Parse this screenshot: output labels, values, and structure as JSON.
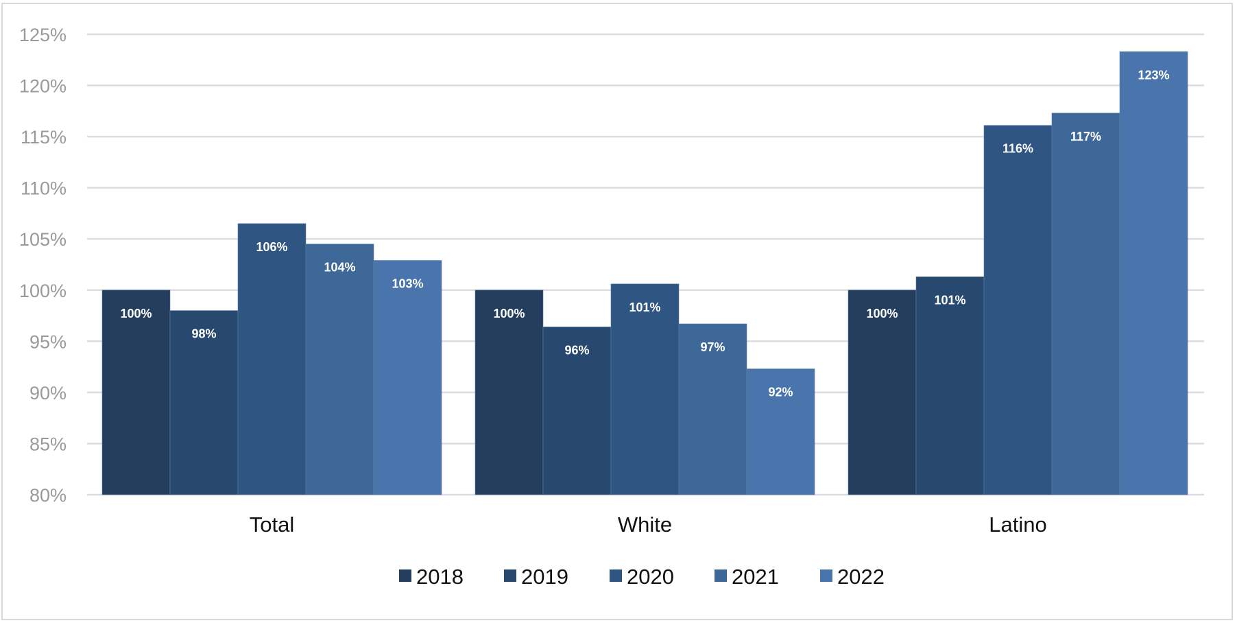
{
  "chart_data": {
    "type": "bar",
    "title": "",
    "xlabel": "",
    "ylabel": "",
    "categories": [
      "Total",
      "White",
      "Latino"
    ],
    "series": [
      {
        "name": "2018",
        "color": "#243d5c",
        "values": [
          100,
          100,
          100
        ],
        "labels": [
          "100%",
          "100%",
          "100%"
        ]
      },
      {
        "name": "2019",
        "color": "#28496f",
        "values": [
          98,
          96.4,
          101.3
        ],
        "labels": [
          "98%",
          "96%",
          "101%"
        ]
      },
      {
        "name": "2020",
        "color": "#2f5582",
        "values": [
          106.5,
          100.6,
          116.1
        ],
        "labels": [
          "106%",
          "101%",
          "116%"
        ]
      },
      {
        "name": "2021",
        "color": "#3d6898",
        "values": [
          104.5,
          96.7,
          117.3
        ],
        "labels": [
          "104%",
          "97%",
          "117%"
        ]
      },
      {
        "name": "2022",
        "color": "#4a75ac",
        "values": [
          102.9,
          92.3,
          123.3
        ],
        "labels": [
          "103%",
          "92%",
          "123%"
        ]
      }
    ],
    "ylim": [
      80,
      125
    ],
    "yticks": [
      80,
      85,
      90,
      95,
      100,
      105,
      110,
      115,
      120,
      125
    ],
    "ytick_labels": [
      "80%",
      "85%",
      "90%",
      "95%",
      "100%",
      "105%",
      "110%",
      "115%",
      "120%",
      "125%"
    ],
    "grid": true,
    "legend": "bottom-center"
  }
}
